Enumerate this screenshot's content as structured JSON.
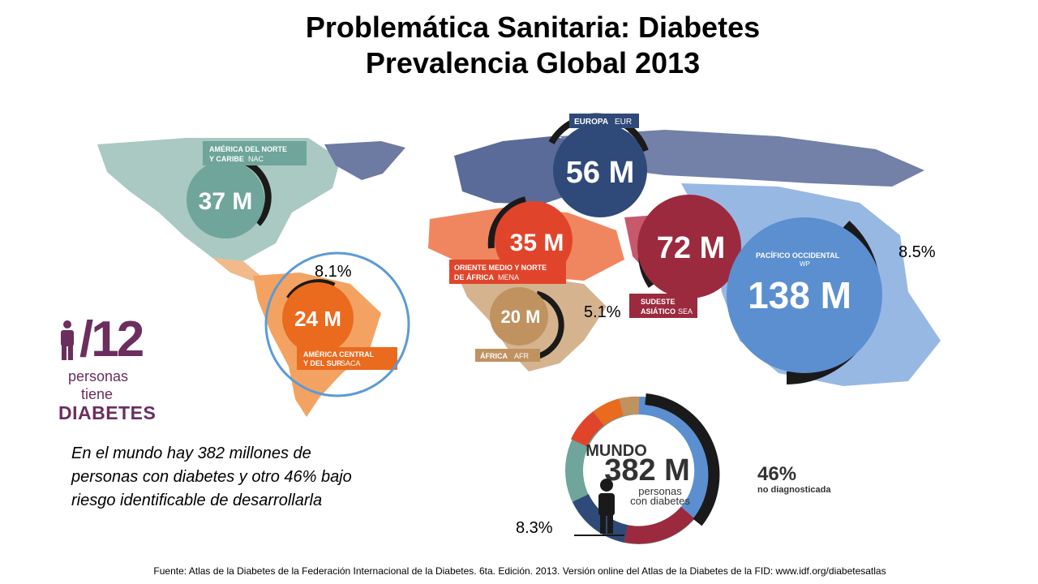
{
  "title": {
    "line1": "Problemática Sanitaria: Diabetes",
    "line2": "Prevalencia Global 2013"
  },
  "regions": [
    {
      "id": "nac",
      "label_line1": "AMÉRICA DEL NORTE",
      "label_line2": "Y CARIBE",
      "code": "NAC",
      "value": "37 M",
      "color": "#6fa59a"
    },
    {
      "id": "eur",
      "label_line1": "EUROPA",
      "label_line2": "",
      "code": "EUR",
      "value": "56 M",
      "color": "#2f4a78"
    },
    {
      "id": "mena",
      "label_line1": "ORIENTE MEDIO Y NORTE",
      "label_line2": "DE ÁFRICA",
      "code": "MENA",
      "value": "35 M",
      "color": "#e0452b"
    },
    {
      "id": "sea",
      "label_line1": "SUDESTE",
      "label_line2": "ASIÁTICO",
      "code": "SEA",
      "value": "72 M",
      "color": "#9c2a3e"
    },
    {
      "id": "wp",
      "label_line1": "PACÍFICO OCCIDENTAL",
      "label_line2": "",
      "code": "WP",
      "value": "138 M",
      "color": "#5b8fd0"
    },
    {
      "id": "saca",
      "label_line1": "AMÉRICA CENTRAL",
      "label_line2": "Y DEL SUR",
      "code": "SACA",
      "value": "24 M",
      "color": "#ea6a1e"
    },
    {
      "id": "afr",
      "label_line1": "ÁFRICA",
      "label_line2": "",
      "code": "AFR",
      "value": "20 M",
      "color": "#c09260"
    }
  ],
  "percentages": {
    "saca": "8.1%",
    "wp": "8.5%",
    "afr": "5.1%",
    "world": "8.3%"
  },
  "logo": {
    "ratio": "/12",
    "line1": "personas",
    "line2": "tiene",
    "line3": "DIABETES"
  },
  "world": {
    "label": "MUNDO",
    "value": "382 M",
    "sub1": "personas",
    "sub2": "con diabetes",
    "undiagnosed_pct": "46%",
    "undiagnosed_label": "no diagnosticada"
  },
  "note": "En el mundo hay 382 millones de personas con diabetes y otro 46% bajo riesgo identificable de desarrollarla",
  "source": "Fuente: Atlas de la Diabetes de la Federación Internacional  de la Diabetes. 6ta. Edición. 2013. Versión online del Atlas de la Diabetes de la FID: www.idf.org/diabetesatlas"
}
